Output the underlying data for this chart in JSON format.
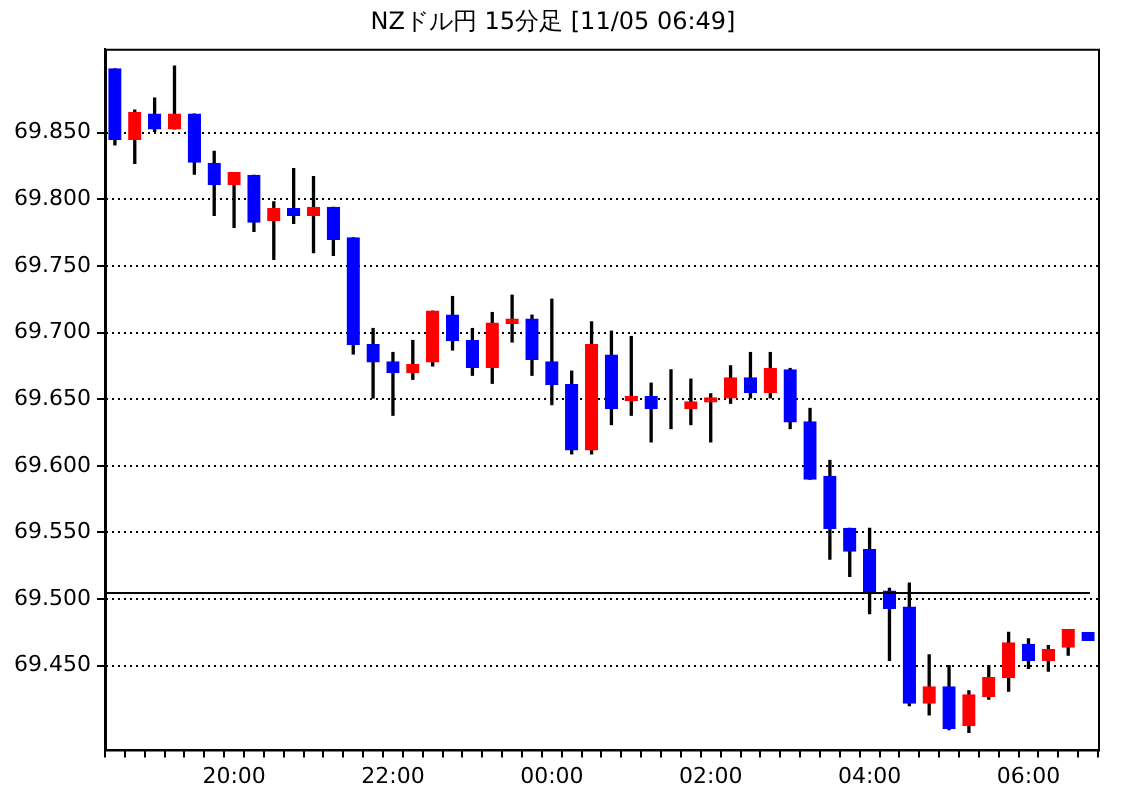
{
  "chart_data": {
    "type": "candlestick",
    "title": "NZドル円 15分足 [11/05 06:49]",
    "categories": [
      null,
      null,
      null,
      null,
      null,
      null,
      "20:00",
      null,
      null,
      null,
      null,
      null,
      null,
      null,
      "22:00",
      null,
      null,
      null,
      null,
      null,
      null,
      null,
      "00:00",
      null,
      null,
      null,
      null,
      null,
      null,
      null,
      "02:00",
      null,
      null,
      null,
      null,
      null,
      null,
      null,
      "04:00",
      null,
      null,
      null,
      null,
      null,
      null,
      null,
      "06:00",
      null,
      null,
      null
    ],
    "ohlc": [
      [
        69.898,
        69.898,
        69.841,
        69.845
      ],
      [
        69.845,
        69.867,
        69.827,
        69.865
      ],
      [
        69.864,
        69.876,
        69.851,
        69.853
      ],
      [
        69.853,
        69.9,
        69.853,
        69.864
      ],
      [
        69.864,
        69.864,
        69.819,
        69.828
      ],
      [
        69.827,
        69.836,
        69.788,
        69.811
      ],
      [
        69.811,
        69.82,
        69.779,
        69.82
      ],
      [
        69.818,
        69.818,
        69.776,
        69.783
      ],
      [
        69.784,
        69.798,
        69.755,
        69.793
      ],
      [
        69.793,
        69.823,
        69.782,
        69.788
      ],
      [
        69.788,
        69.817,
        69.76,
        69.794
      ],
      [
        69.794,
        69.794,
        69.758,
        69.77
      ],
      [
        69.771,
        69.771,
        69.684,
        69.691
      ],
      [
        69.691,
        69.703,
        69.651,
        69.678
      ],
      [
        69.678,
        69.685,
        69.638,
        69.67
      ],
      [
        69.67,
        69.694,
        69.665,
        69.676
      ],
      [
        69.678,
        69.716,
        69.675,
        69.716
      ],
      [
        69.713,
        69.727,
        69.687,
        69.694
      ],
      [
        69.694,
        69.703,
        69.668,
        69.674
      ],
      [
        69.674,
        69.715,
        69.662,
        69.707
      ],
      [
        69.707,
        69.728,
        69.693,
        69.71
      ],
      [
        69.71,
        69.713,
        69.668,
        69.68
      ],
      [
        69.678,
        69.725,
        69.646,
        69.661
      ],
      [
        69.661,
        69.671,
        69.609,
        69.612
      ],
      [
        69.612,
        69.708,
        69.609,
        69.691
      ],
      [
        69.683,
        69.701,
        69.631,
        69.643
      ],
      [
        69.649,
        69.697,
        69.638,
        69.652
      ],
      [
        69.652,
        69.662,
        69.618,
        69.643
      ],
      [
        69.644,
        69.672,
        69.628,
        69.644
      ],
      [
        69.643,
        69.665,
        69.631,
        69.648
      ],
      [
        69.648,
        69.654,
        69.618,
        69.651
      ],
      [
        69.651,
        69.675,
        69.647,
        69.666
      ],
      [
        69.666,
        69.685,
        69.651,
        69.655
      ],
      [
        69.655,
        69.685,
        69.651,
        69.673
      ],
      [
        69.672,
        69.673,
        69.628,
        69.633
      ],
      [
        69.633,
        69.643,
        69.59,
        69.59
      ],
      [
        69.592,
        69.604,
        69.53,
        69.553
      ],
      [
        69.553,
        69.553,
        69.517,
        69.536
      ],
      [
        69.537,
        69.553,
        69.489,
        69.505
      ],
      [
        69.506,
        69.508,
        69.454,
        69.493
      ],
      [
        69.494,
        69.512,
        69.42,
        69.422
      ],
      [
        69.422,
        69.458,
        69.413,
        69.434
      ],
      [
        69.434,
        69.45,
        69.402,
        69.403
      ],
      [
        69.405,
        69.431,
        69.4,
        69.428
      ],
      [
        69.427,
        69.45,
        69.425,
        69.441
      ],
      [
        69.441,
        69.475,
        69.431,
        69.467
      ],
      [
        69.466,
        69.47,
        69.448,
        69.454
      ],
      [
        69.454,
        69.465,
        69.446,
        69.462
      ],
      [
        69.464,
        69.477,
        69.458,
        69.477
      ],
      [
        69.475,
        69.475,
        69.469,
        69.469
      ]
    ],
    "colors": [
      "#0000ff",
      "#ff0000",
      "#0000ff",
      "#ff0000",
      "#0000ff",
      "#0000ff",
      "#ff0000",
      "#0000ff",
      "#ff0000",
      "#0000ff",
      "#ff0000",
      "#0000ff",
      "#0000ff",
      "#0000ff",
      "#0000ff",
      "#ff0000",
      "#ff0000",
      "#0000ff",
      "#0000ff",
      "#ff0000",
      "#ff0000",
      "#0000ff",
      "#0000ff",
      "#0000ff",
      "#ff0000",
      "#0000ff",
      "#ff0000",
      "#0000ff",
      "#0000ff",
      "#ff0000",
      "#ff0000",
      "#ff0000",
      "#0000ff",
      "#ff0000",
      "#0000ff",
      "#0000ff",
      "#0000ff",
      "#0000ff",
      "#0000ff",
      "#0000ff",
      "#0000ff",
      "#ff0000",
      "#0000ff",
      "#ff0000",
      "#ff0000",
      "#ff0000",
      "#0000ff",
      "#ff0000",
      "#ff0000",
      "#0000ff"
    ],
    "ylim": [
      69.387,
      69.913
    ],
    "yticks": [
      {
        "value": 69.45,
        "label": "69.450"
      },
      {
        "value": 69.5,
        "label": "69.500"
      },
      {
        "value": 69.55,
        "label": "69.550"
      },
      {
        "value": 69.6,
        "label": "69.600"
      },
      {
        "value": 69.65,
        "label": "69.650"
      },
      {
        "value": 69.7,
        "label": "69.700"
      },
      {
        "value": 69.75,
        "label": "69.750"
      },
      {
        "value": 69.8,
        "label": "69.800"
      },
      {
        "value": 69.85,
        "label": "69.850"
      }
    ],
    "grid": "y",
    "legend": false,
    "ref_lines": [
      {
        "axis": "y",
        "value": 69.505,
        "color": "#000000",
        "line_style": "solid"
      }
    ]
  }
}
